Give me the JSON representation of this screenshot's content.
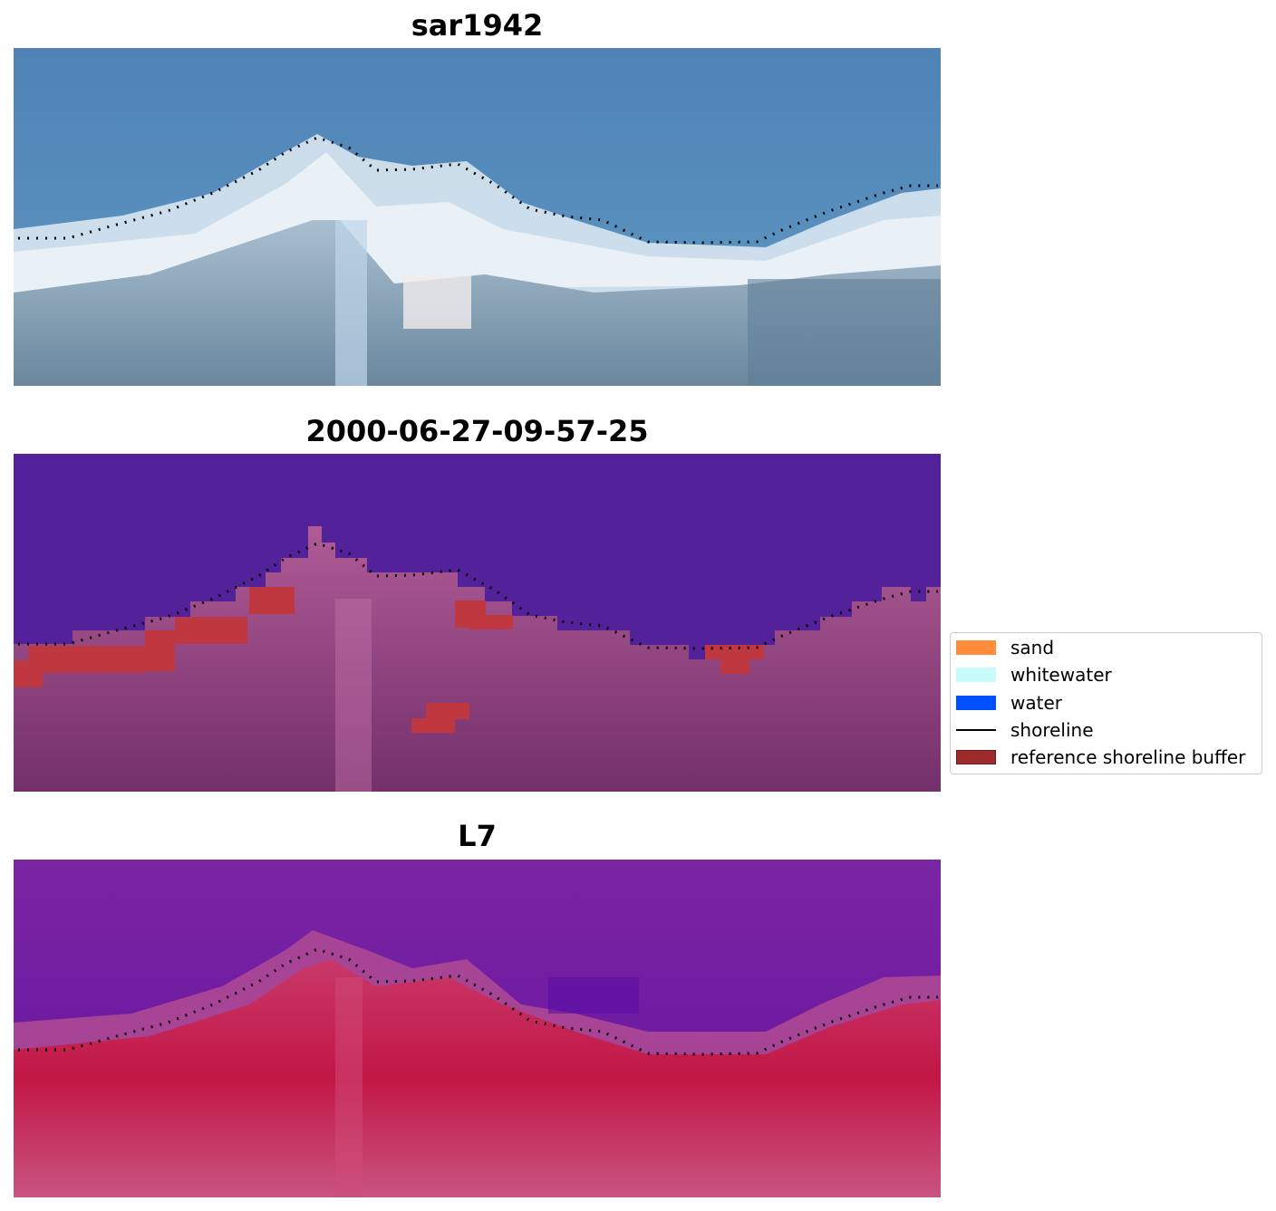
{
  "panels": [
    {
      "title": "sar1942",
      "kind": "rgb"
    },
    {
      "title": "2000-06-27-09-57-25",
      "kind": "classified"
    },
    {
      "title": "L7",
      "kind": "index"
    }
  ],
  "legend": {
    "items": [
      {
        "label": "sand",
        "type": "patch",
        "color": "#ff8c3a"
      },
      {
        "label": "whitewater",
        "type": "patch",
        "color": "#c8fcfc"
      },
      {
        "label": "water",
        "type": "patch",
        "color": "#0050ff"
      },
      {
        "label": "shoreline",
        "type": "line",
        "color": "#000000"
      },
      {
        "label": "reference shoreline buffer",
        "type": "patch",
        "color": "#9e2b2b"
      }
    ]
  },
  "colors": {
    "sea_rgb": "#4f86b4",
    "whitewater_rgb": "#dde8ee",
    "land_rgb": "#7692a8",
    "water_class": "#53229a",
    "land_class": "#9b4a8a",
    "buffer": "#c0383f",
    "index_low": "#7a1f9e",
    "index_high": "#c01e4a"
  }
}
